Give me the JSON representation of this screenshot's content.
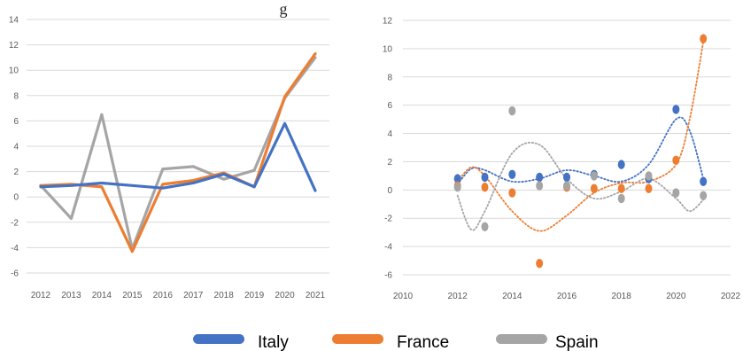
{
  "partial_title": "g",
  "legend": [
    {
      "label": "Italy",
      "color": "#4472C4"
    },
    {
      "label": "France",
      "color": "#ED7D31"
    },
    {
      "label": "Spain",
      "color": "#A5A5A5"
    }
  ],
  "chart_data": [
    {
      "type": "line",
      "x": [
        "2012",
        "2013",
        "2014",
        "2015",
        "2016",
        "2017",
        "2018",
        "2019",
        "2020",
        "2021"
      ],
      "ylim": [
        -6,
        14
      ],
      "yticks": [
        -6,
        -4,
        -2,
        0,
        2,
        4,
        6,
        8,
        10,
        12,
        14
      ],
      "grid": true,
      "series": [
        {
          "name": "Italy",
          "color": "#4472C4",
          "values": [
            0.8,
            0.9,
            1.1,
            0.9,
            0.7,
            1.1,
            1.8,
            0.8,
            5.8,
            0.5
          ]
        },
        {
          "name": "France",
          "color": "#ED7D31",
          "values": [
            0.9,
            1.0,
            0.8,
            -4.3,
            1.0,
            1.3,
            1.9,
            0.8,
            7.9,
            11.3
          ]
        },
        {
          "name": "Spain",
          "color": "#A5A5A5",
          "values": [
            0.9,
            -1.7,
            6.5,
            -4.1,
            2.2,
            2.4,
            1.4,
            2.1,
            7.8,
            11.0
          ]
        }
      ]
    },
    {
      "type": "scatter",
      "xlim": [
        2010,
        2022
      ],
      "xticks": [
        2010,
        2012,
        2014,
        2016,
        2018,
        2020,
        2022
      ],
      "ylim": [
        -6,
        12
      ],
      "yticks": [
        -6,
        -4,
        -2,
        0,
        2,
        4,
        6,
        8,
        10,
        12
      ],
      "grid": true,
      "trendline": "polynomial",
      "series": [
        {
          "name": "Italy",
          "color": "#4472C4",
          "points": [
            [
              2012,
              0.8
            ],
            [
              2013,
              0.9
            ],
            [
              2014,
              1.1
            ],
            [
              2015,
              0.9
            ],
            [
              2016,
              0.9
            ],
            [
              2017,
              1.1
            ],
            [
              2018,
              1.8
            ],
            [
              2019,
              0.8
            ],
            [
              2020,
              5.7
            ],
            [
              2021,
              0.6
            ]
          ],
          "trend": [
            [
              2012,
              0.4
            ],
            [
              2012.5,
              1.5
            ],
            [
              2013,
              1.4
            ],
            [
              2014,
              0.6
            ],
            [
              2015,
              0.8
            ],
            [
              2016,
              1.4
            ],
            [
              2017,
              1.0
            ],
            [
              2018,
              0.6
            ],
            [
              2019,
              1.8
            ],
            [
              2020,
              5.0
            ],
            [
              2020.5,
              4.2
            ],
            [
              2021,
              0.8
            ]
          ]
        },
        {
          "name": "France",
          "color": "#ED7D31",
          "points": [
            [
              2012,
              0.3
            ],
            [
              2013,
              0.2
            ],
            [
              2014,
              -0.2
            ],
            [
              2015,
              -5.2
            ],
            [
              2016,
              0.2
            ],
            [
              2017,
              0.1
            ],
            [
              2018,
              0.1
            ],
            [
              2019,
              0.1
            ],
            [
              2020,
              2.1
            ],
            [
              2021,
              10.7
            ]
          ],
          "trend": [
            [
              2012,
              0.6
            ],
            [
              2012.5,
              1.6
            ],
            [
              2013,
              1.0
            ],
            [
              2014,
              -1.5
            ],
            [
              2015,
              -2.9
            ],
            [
              2016,
              -1.8
            ],
            [
              2017,
              -0.2
            ],
            [
              2018,
              0.5
            ],
            [
              2019,
              0.6
            ],
            [
              2020,
              1.8
            ],
            [
              2020.5,
              5.0
            ],
            [
              2021,
              10.5
            ]
          ]
        },
        {
          "name": "Spain",
          "color": "#A5A5A5",
          "points": [
            [
              2012,
              0.2
            ],
            [
              2013,
              -2.6
            ],
            [
              2014,
              5.6
            ],
            [
              2015,
              0.3
            ],
            [
              2016,
              0.3
            ],
            [
              2017,
              1.0
            ],
            [
              2018,
              -0.6
            ],
            [
              2019,
              1.0
            ],
            [
              2020,
              -0.2
            ],
            [
              2021,
              -0.4
            ]
          ],
          "trend": [
            [
              2012,
              -0.4
            ],
            [
              2012.5,
              -2.8
            ],
            [
              2013,
              -1.5
            ],
            [
              2014,
              2.6
            ],
            [
              2015,
              3.2
            ],
            [
              2016,
              0.8
            ],
            [
              2017,
              -0.6
            ],
            [
              2018,
              -0.1
            ],
            [
              2019,
              0.8
            ],
            [
              2020,
              -0.6
            ],
            [
              2020.5,
              -1.5
            ],
            [
              2021,
              -0.7
            ]
          ]
        }
      ]
    }
  ]
}
